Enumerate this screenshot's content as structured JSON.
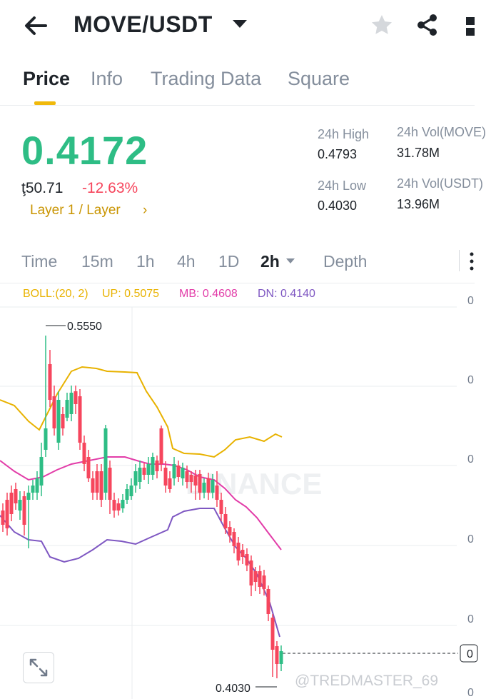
{
  "header": {
    "pair": "MOVE/USDT"
  },
  "tabs": [
    {
      "label": "Price"
    },
    {
      "label": "Info"
    },
    {
      "label": "Trading Data"
    },
    {
      "label": "Square"
    }
  ],
  "price": {
    "last": "0.4172",
    "fiat": "ţ50.71",
    "change": "-12.63%",
    "tags": "Layer 1 / Layer",
    "tags_arrow": "›"
  },
  "stats": {
    "high_label": "24h High",
    "high_value": "0.4793",
    "low_label": "24h Low",
    "low_value": "0.4030",
    "vol_move_label": "24h Vol(MOVE)",
    "vol_move_value": "31.78M",
    "vol_usdt_label": "24h Vol(USDT)",
    "vol_usdt_value": "13.96M"
  },
  "intervals": [
    {
      "label": "Time"
    },
    {
      "label": "15m"
    },
    {
      "label": "1h"
    },
    {
      "label": "4h"
    },
    {
      "label": "1D"
    },
    {
      "label": "2h"
    },
    {
      "label": "Depth"
    }
  ],
  "boll": {
    "params": "BOLL:(20, 2)",
    "up": "UP: 0.5075",
    "mb": "MB: 0.4608",
    "dn": "DN: 0.4140"
  },
  "chart": {
    "high_marker": "0.5550",
    "low_marker": "0.4030",
    "axis_labels": [
      "0",
      "0",
      "0",
      "0",
      "0",
      "0"
    ],
    "current_label": "0",
    "watermark": "BINANCE",
    "user_watermark": "@TREDMASTER_69"
  },
  "colors": {
    "up": "#2ebd85",
    "down": "#f6465d",
    "accent": "#f0b90b",
    "boll_up": "#e8b200",
    "boll_mb": "#e23ca8",
    "boll_dn": "#7e57c2"
  }
}
